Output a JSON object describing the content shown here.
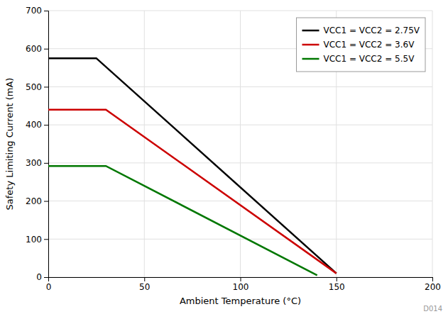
{
  "chart_data": {
    "type": "line",
    "xlabel": "Ambient Temperature (°C)",
    "ylabel": "Safety Limiting Current (mA)",
    "series": [
      {
        "name": "VCC1 = VCC2 = 2.75V",
        "color": "#000000",
        "x": [
          0,
          25,
          150
        ],
        "values": [
          575,
          575,
          10
        ]
      },
      {
        "name": "VCC1 = VCC2 = 3.6V",
        "color": "#cc0000",
        "x": [
          0,
          30,
          150
        ],
        "values": [
          440,
          440,
          10
        ]
      },
      {
        "name": "VCC1 = VCC2 = 5.5V",
        "color": "#007700",
        "x": [
          0,
          30,
          140
        ],
        "values": [
          292,
          292,
          5
        ]
      }
    ],
    "xlim": [
      0,
      200
    ],
    "ylim": [
      0,
      700
    ],
    "xticks": [
      0,
      50,
      100,
      150,
      200
    ],
    "yticks": [
      0,
      100,
      200,
      300,
      400,
      500,
      600,
      700
    ],
    "grid": true,
    "legend": "upper right",
    "annotations": [
      {
        "text": "D014"
      }
    ]
  }
}
